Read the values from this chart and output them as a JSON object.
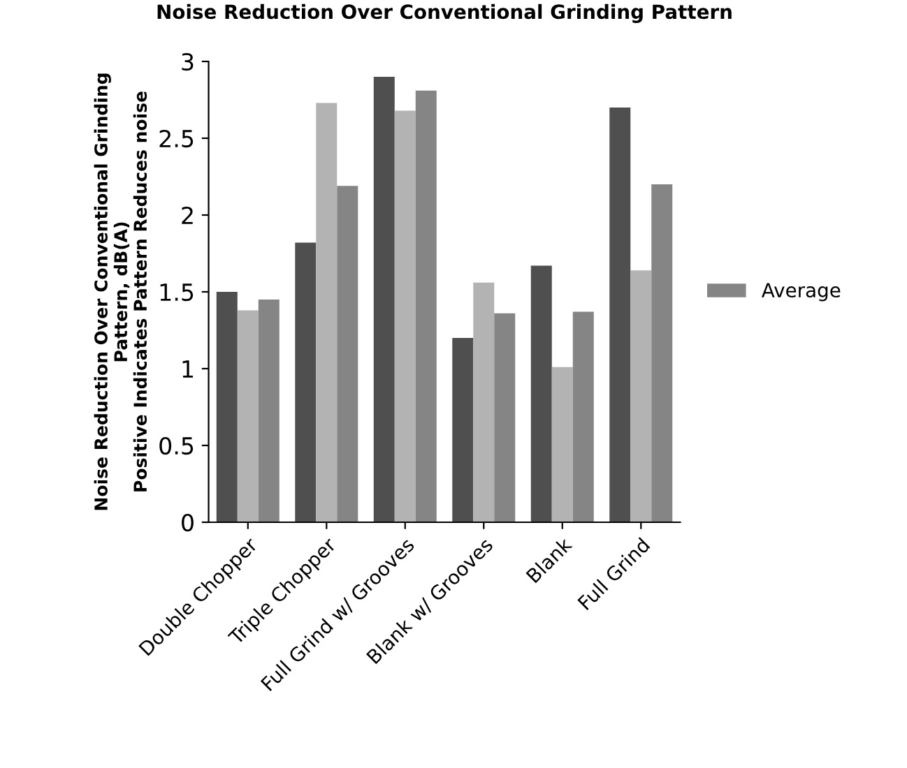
{
  "chart_data": {
    "type": "bar",
    "title": "Noise Reduction Over Conventional Grinding Pattern",
    "ylabel": "Noise Reduction Over Conventional Grinding\nPattern, dB(A)\nPositive Indicates Pattern Reduces noise",
    "categories": [
      "Double Chopper",
      "Triple Chopper",
      "Full Grind w/ Grooves",
      "Blank w/ Grooves",
      "Blank",
      "Full Grind"
    ],
    "series": [
      {
        "color": "#4f4f4f",
        "values": [
          1.5,
          1.82,
          2.9,
          1.2,
          1.67,
          2.7
        ]
      },
      {
        "color": "#b3b3b3",
        "values": [
          1.38,
          2.73,
          2.68,
          1.56,
          1.01,
          1.64
        ]
      },
      {
        "name": "Average",
        "color": "#858585",
        "values": [
          1.45,
          2.19,
          2.81,
          1.36,
          1.37,
          2.2
        ]
      }
    ],
    "ylim": [
      0,
      3
    ],
    "yticks": [
      0,
      0.5,
      1,
      1.5,
      2,
      2.5,
      3
    ],
    "grid": false,
    "legend": "right"
  }
}
